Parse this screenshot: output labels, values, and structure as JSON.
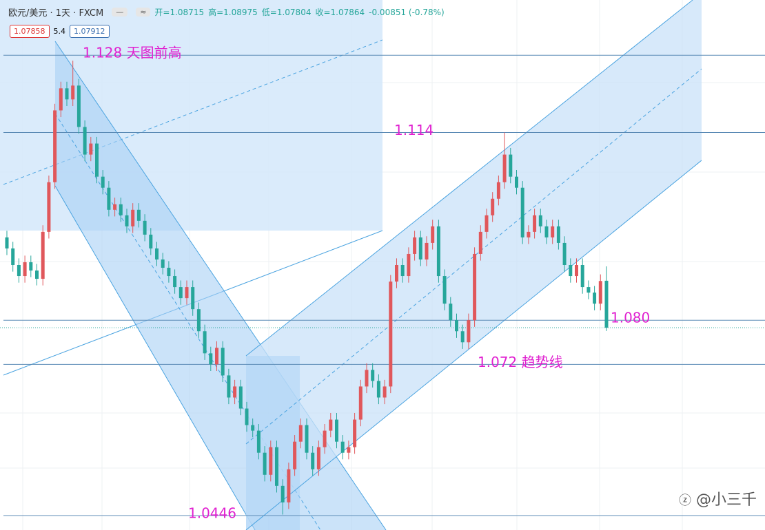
{
  "chart_data": {
    "type": "candlestick",
    "header": {
      "symbol": "欧元/美元 · 1天 · FXCM",
      "open": "开=1.08715",
      "high": "高=1.08975",
      "low": "低=1.07804",
      "close": "收=1.07864",
      "change": "-0.00851 (-0.78%)"
    },
    "price_boxes": [
      "1.07858",
      "5.4",
      "1.07912"
    ],
    "watermark": "@小三千",
    "ylim": [
      1.042,
      1.138
    ],
    "up_color": "#e0575b",
    "down_color": "#26a69a",
    "levels": [
      {
        "value": 1.128,
        "label": "1.128 天图前高"
      },
      {
        "value": 1.114,
        "label": "1.114"
      },
      {
        "value": 1.08,
        "label": "1.080"
      },
      {
        "value": 1.072,
        "label": "1.072 趋势线"
      },
      {
        "value": 1.0446,
        "label": "1.0446"
      }
    ],
    "last_price": 1.07864,
    "open": [
      1.095,
      1.093,
      1.09,
      1.088,
      1.0905,
      1.089,
      1.0875,
      1.096,
      1.105,
      1.118,
      1.122,
      1.12,
      1.1225,
      1.115,
      1.11,
      1.112,
      1.106,
      1.104,
      1.1,
      1.101,
      1.099,
      1.097,
      1.1,
      1.098,
      1.0955,
      1.093,
      1.091,
      1.0895,
      1.088,
      1.086,
      1.084,
      1.086,
      1.082,
      1.078,
      1.074,
      1.072,
      1.075,
      1.07,
      1.066,
      1.068,
      1.064,
      1.061,
      1.06,
      1.056,
      1.052,
      1.057,
      1.05,
      1.047,
      1.053,
      1.058,
      1.061,
      1.056,
      1.053,
      1.057,
      1.06,
      1.062,
      1.058,
      1.056,
      1.057,
      1.062,
      1.068,
      1.071,
      1.069,
      1.066,
      1.068,
      1.087,
      1.09,
      1.088,
      1.092,
      1.095,
      1.091,
      1.094,
      1.097,
      1.088,
      1.083,
      1.08,
      1.078,
      1.076,
      1.08,
      1.092,
      1.096,
      1.099,
      1.102,
      1.105,
      1.11,
      1.106,
      1.104,
      1.095,
      1.096,
      1.099,
      1.097,
      1.095,
      1.097,
      1.094,
      1.09,
      1.088,
      1.09,
      1.086,
      1.085,
      1.083,
      1.08715
    ],
    "high": [
      1.0962,
      1.0942,
      1.0912,
      1.0917,
      1.0917,
      1.0902,
      1.0972,
      1.1062,
      1.1192,
      1.1232,
      1.1232,
      1.127,
      1.1237,
      1.1162,
      1.1132,
      1.1132,
      1.1072,
      1.1052,
      1.1022,
      1.1022,
      1.1002,
      1.1012,
      1.1012,
      1.0992,
      1.0967,
      1.0942,
      1.0922,
      1.0907,
      1.0892,
      1.0872,
      1.0872,
      1.0872,
      1.0832,
      1.0792,
      1.0752,
      1.0762,
      1.0762,
      1.0712,
      1.0692,
      1.0692,
      1.0652,
      1.0622,
      1.0612,
      1.0572,
      1.0582,
      1.0582,
      1.0512,
      1.0542,
      1.0592,
      1.0622,
      1.0622,
      1.0572,
      1.0582,
      1.0612,
      1.0632,
      1.0632,
      1.0592,
      1.0582,
      1.0632,
      1.0692,
      1.0722,
      1.0722,
      1.0702,
      1.0692,
      1.0882,
      1.0912,
      1.0912,
      1.0932,
      1.0962,
      1.0962,
      1.0952,
      1.0982,
      1.0982,
      1.0892,
      1.0842,
      1.0812,
      1.0792,
      1.0812,
      1.0932,
      1.0972,
      1.1002,
      1.1032,
      1.1062,
      1.114,
      1.1112,
      1.1072,
      1.1052,
      1.0972,
      1.1002,
      1.1002,
      1.0982,
      1.0982,
      1.0982,
      1.0952,
      1.0912,
      1.0912,
      1.0912,
      1.0872,
      1.0862,
      1.0883,
      1.08975
    ],
    "low": [
      1.0918,
      1.0888,
      1.0868,
      1.0868,
      1.0878,
      1.0863,
      1.0863,
      1.0948,
      1.1038,
      1.1168,
      1.1188,
      1.1188,
      1.1138,
      1.1088,
      1.1088,
      1.1048,
      1.1028,
      1.0988,
      1.0988,
      1.0978,
      1.0958,
      1.0958,
      1.0968,
      1.0943,
      1.0918,
      1.0898,
      1.0883,
      1.0868,
      1.0848,
      1.0828,
      1.0828,
      1.0808,
      1.0768,
      1.0728,
      1.0708,
      1.0708,
      1.0688,
      1.0648,
      1.0648,
      1.0628,
      1.0598,
      1.0588,
      1.0548,
      1.0508,
      1.0508,
      1.0488,
      1.0448,
      1.0458,
      1.0518,
      1.0568,
      1.0548,
      1.0518,
      1.0518,
      1.0558,
      1.0588,
      1.0568,
      1.0548,
      1.0548,
      1.0558,
      1.0608,
      1.0668,
      1.0678,
      1.0648,
      1.0648,
      1.0668,
      1.0858,
      1.0868,
      1.0868,
      1.0908,
      1.0898,
      1.0898,
      1.0928,
      1.0868,
      1.0818,
      1.0788,
      1.0768,
      1.0748,
      1.0748,
      1.0788,
      1.0908,
      1.0948,
      1.0978,
      1.1008,
      1.1038,
      1.1048,
      1.1028,
      1.0938,
      1.0938,
      1.0948,
      1.0958,
      1.0938,
      1.0938,
      1.0928,
      1.0888,
      1.0868,
      1.0868,
      1.0848,
      1.0838,
      1.0818,
      1.0818,
      1.07804
    ],
    "close": [
      1.093,
      1.09,
      1.088,
      1.0905,
      1.089,
      1.0875,
      1.096,
      1.105,
      1.118,
      1.122,
      1.12,
      1.1225,
      1.115,
      1.11,
      1.112,
      1.106,
      1.104,
      1.1,
      1.101,
      1.099,
      1.097,
      1.1,
      1.098,
      1.0955,
      1.093,
      1.091,
      1.0895,
      1.088,
      1.086,
      1.084,
      1.086,
      1.082,
      1.078,
      1.074,
      1.072,
      1.075,
      1.07,
      1.066,
      1.068,
      1.064,
      1.061,
      1.06,
      1.056,
      1.052,
      1.057,
      1.05,
      1.047,
      1.053,
      1.058,
      1.061,
      1.056,
      1.053,
      1.057,
      1.06,
      1.062,
      1.058,
      1.056,
      1.057,
      1.062,
      1.068,
      1.071,
      1.069,
      1.066,
      1.068,
      1.087,
      1.09,
      1.088,
      1.092,
      1.095,
      1.091,
      1.094,
      1.097,
      1.088,
      1.083,
      1.08,
      1.078,
      1.076,
      1.08,
      1.092,
      1.096,
      1.099,
      1.102,
      1.105,
      1.11,
      1.106,
      1.104,
      1.095,
      1.096,
      1.099,
      1.097,
      1.095,
      1.097,
      1.094,
      1.09,
      1.088,
      1.09,
      1.086,
      1.085,
      1.083,
      1.0871,
      1.07864
    ]
  }
}
